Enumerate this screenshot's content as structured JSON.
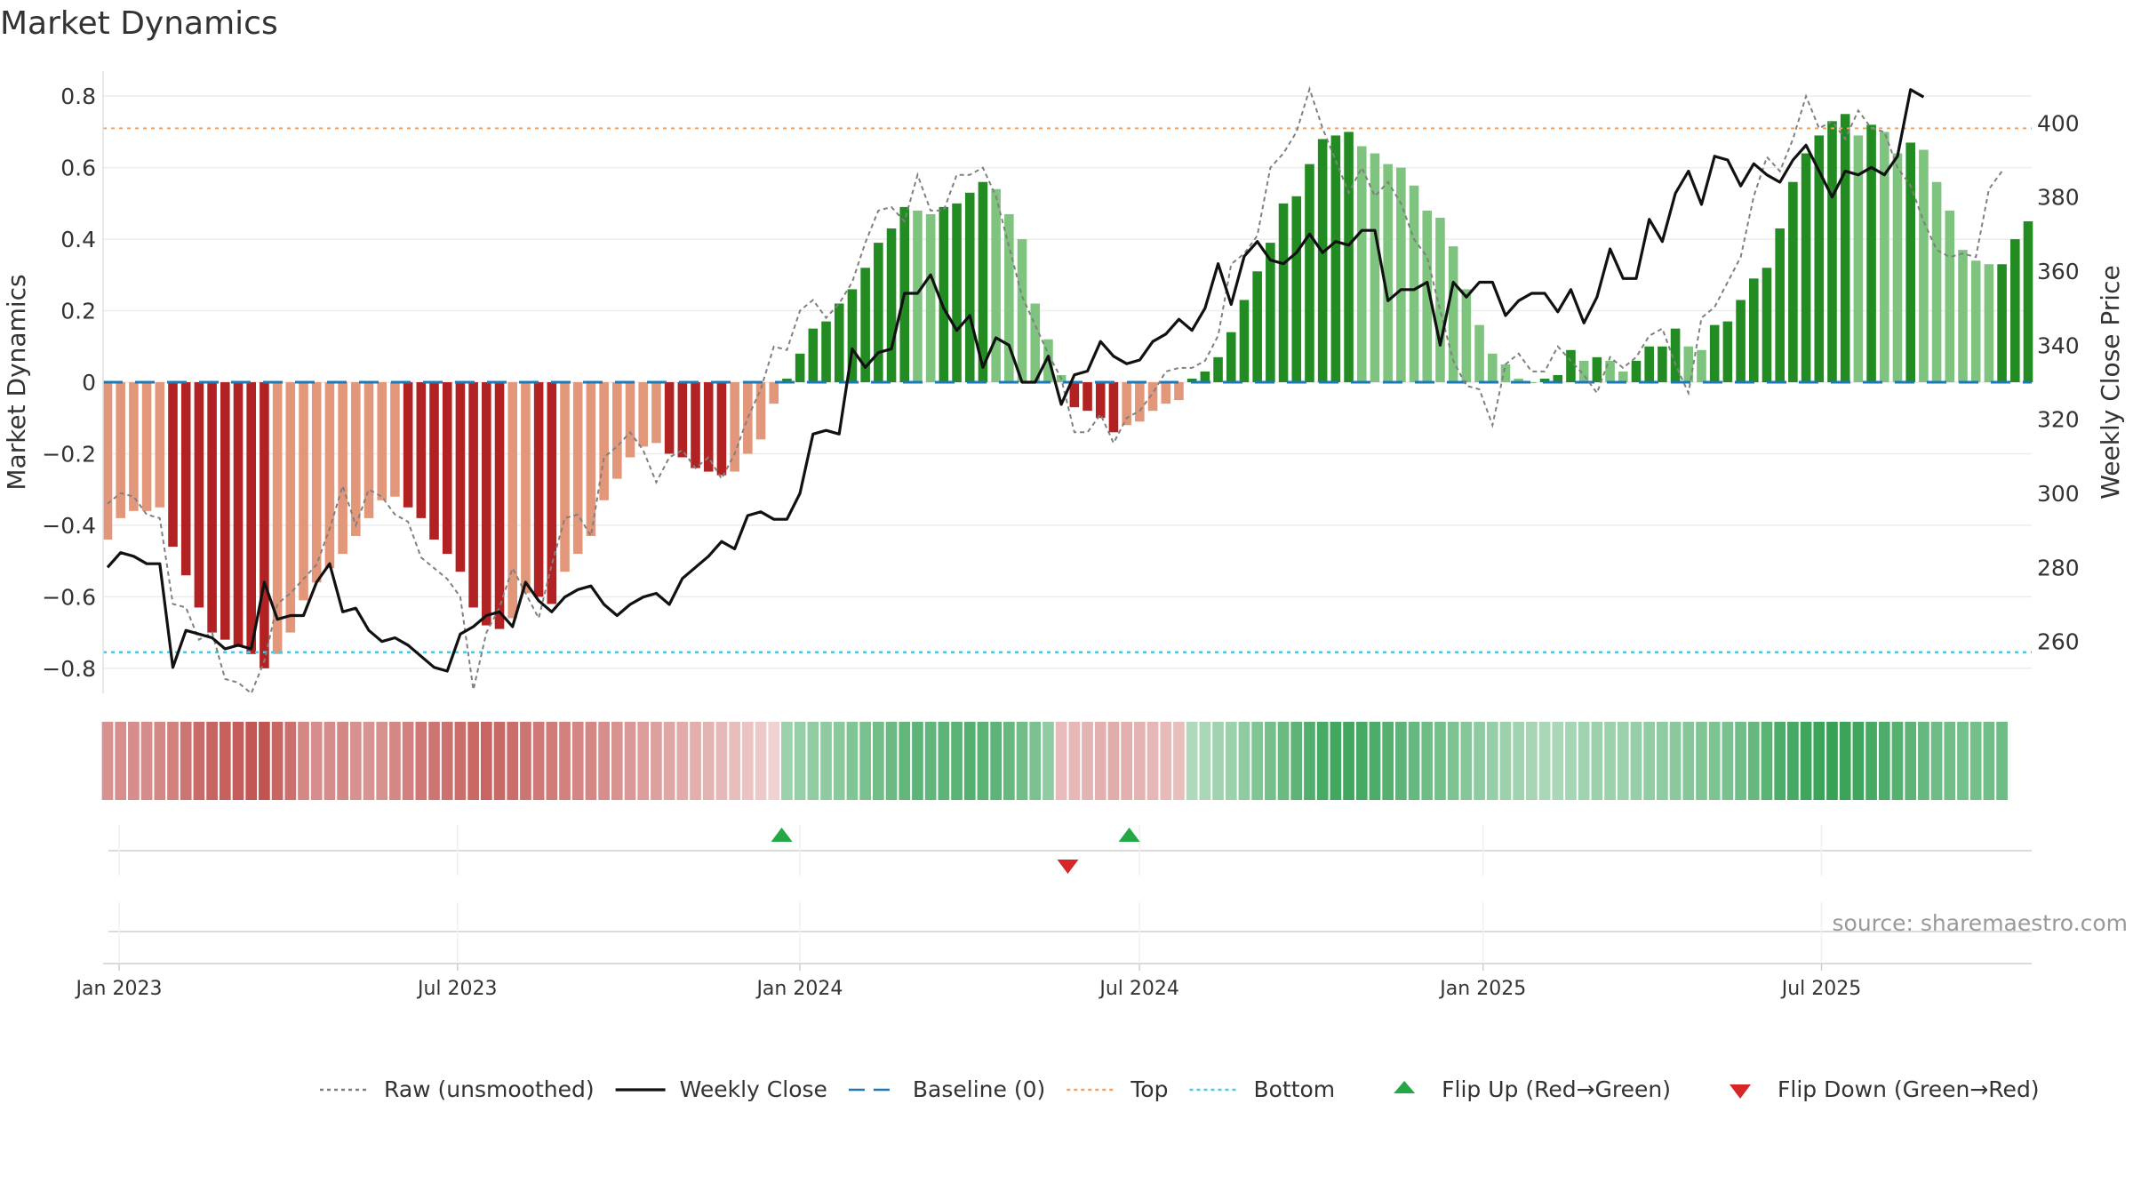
{
  "title": "Market Dynamics",
  "source": "source: sharemaestro.com",
  "chart_data": {
    "type": "bar",
    "ylabel": "Market Dynamics",
    "y2label": "Weekly Close Price",
    "ylim": [
      -0.87,
      0.87
    ],
    "y2lim": [
      246,
      414
    ],
    "yticks": [
      -0.8,
      -0.6,
      -0.4,
      -0.2,
      0,
      0.2,
      0.4,
      0.6,
      0.8
    ],
    "yticklabels": [
      "−0.8",
      "−0.6",
      "−0.4",
      "−0.2",
      "0",
      "0.2",
      "0.4",
      "0.6",
      "0.8"
    ],
    "y2ticks": [
      260,
      280,
      300,
      320,
      340,
      360,
      380,
      400
    ],
    "y2ticklabels": [
      "260",
      "280",
      "300",
      "320",
      "340",
      "360",
      "380",
      "400"
    ],
    "xticks": [
      {
        "label": "Jan 2023",
        "week": 0
      },
      {
        "label": "Jul 2023",
        "week": 25.9
      },
      {
        "label": "Jan 2024",
        "week": 52.1
      },
      {
        "label": "Jul 2024",
        "week": 78.1
      },
      {
        "label": "Jan 2025",
        "week": 104.4
      },
      {
        "label": "Jul 2025",
        "week": 130.3
      }
    ],
    "grid": true,
    "legend_position": "bottom",
    "top_line": 0.71,
    "bottom_line": -0.755,
    "baseline": 0,
    "colors": {
      "bar_bear_strong": "#b22222",
      "bar_bear_weak": "#e3977a",
      "bar_bull_strong": "#228b22",
      "bar_bull_weak": "#7ec47e",
      "weekly_close": "#111111",
      "raw": "#808080",
      "baseline": "#1f77b4",
      "top": "#f4a261",
      "bottom": "#48cae4",
      "flip_up": "#22a845",
      "flip_down": "#d62728",
      "heat_red": "#c0504d",
      "heat_green": "#2e9e4f"
    },
    "series": [
      {
        "name": "Market Dynamics",
        "values": [
          -0.44,
          -0.38,
          -0.36,
          -0.36,
          -0.35,
          -0.46,
          -0.54,
          -0.63,
          -0.7,
          -0.72,
          -0.74,
          -0.76,
          -0.8,
          -0.76,
          -0.7,
          -0.61,
          -0.56,
          -0.52,
          -0.48,
          -0.43,
          -0.38,
          -0.33,
          -0.32,
          -0.35,
          -0.38,
          -0.44,
          -0.48,
          -0.53,
          -0.63,
          -0.68,
          -0.69,
          -0.66,
          -0.59,
          -0.6,
          -0.62,
          -0.53,
          -0.48,
          -0.43,
          -0.33,
          -0.27,
          -0.21,
          -0.18,
          -0.17,
          -0.2,
          -0.21,
          -0.24,
          -0.25,
          -0.26,
          -0.25,
          -0.2,
          -0.16,
          -0.06,
          0.01,
          0.08,
          0.15,
          0.17,
          0.22,
          0.26,
          0.32,
          0.39,
          0.43,
          0.49,
          0.48,
          0.47,
          0.49,
          0.5,
          0.53,
          0.56,
          0.54,
          0.47,
          0.4,
          0.22,
          0.12,
          0.02,
          -0.07,
          -0.08,
          -0.1,
          -0.14,
          -0.12,
          -0.11,
          -0.08,
          -0.06,
          -0.05,
          0.01,
          0.03,
          0.07,
          0.14,
          0.23,
          0.31,
          0.39,
          0.5,
          0.52,
          0.61,
          0.68,
          0.69,
          0.7,
          0.66,
          0.64,
          0.61,
          0.6,
          0.55,
          0.48,
          0.46,
          0.38,
          0.26,
          0.16,
          0.08,
          0.05,
          0.01,
          0.0,
          0.01,
          0.02,
          0.09,
          0.06,
          0.07,
          0.06,
          0.03,
          0.06,
          0.1,
          0.1,
          0.15,
          0.1,
          0.09,
          0.16,
          0.17,
          0.23,
          0.29,
          0.32,
          0.43,
          0.56,
          0.64,
          0.69,
          0.73,
          0.75,
          0.69,
          0.72,
          0.7,
          0.64,
          0.67,
          0.65,
          0.56,
          0.48,
          0.37,
          0.34,
          0.33,
          0.33,
          0.4,
          0.45
        ]
      },
      {
        "name": "Raw (unsmoothed)",
        "values": [
          -0.34,
          -0.31,
          -0.32,
          -0.37,
          -0.38,
          -0.62,
          -0.63,
          -0.72,
          -0.7,
          -0.83,
          -0.84,
          -0.87,
          -0.78,
          -0.62,
          -0.59,
          -0.55,
          -0.51,
          -0.41,
          -0.29,
          -0.4,
          -0.3,
          -0.32,
          -0.37,
          -0.39,
          -0.49,
          -0.52,
          -0.55,
          -0.6,
          -0.86,
          -0.7,
          -0.63,
          -0.52,
          -0.59,
          -0.66,
          -0.51,
          -0.38,
          -0.37,
          -0.43,
          -0.21,
          -0.18,
          -0.14,
          -0.19,
          -0.28,
          -0.21,
          -0.19,
          -0.24,
          -0.21,
          -0.27,
          -0.2,
          -0.1,
          -0.02,
          0.1,
          0.09,
          0.2,
          0.23,
          0.18,
          0.22,
          0.28,
          0.39,
          0.48,
          0.49,
          0.45,
          0.58,
          0.48,
          0.48,
          0.58,
          0.58,
          0.6,
          0.52,
          0.38,
          0.24,
          0.16,
          0.08,
          0.01,
          -0.14,
          -0.14,
          -0.09,
          -0.17,
          -0.1,
          -0.08,
          -0.03,
          0.03,
          0.04,
          0.04,
          0.06,
          0.13,
          0.33,
          0.36,
          0.41,
          0.6,
          0.64,
          0.7,
          0.82,
          0.71,
          0.62,
          0.53,
          0.6,
          0.52,
          0.56,
          0.5,
          0.4,
          0.35,
          0.2,
          0.06,
          -0.01,
          -0.02,
          -0.12,
          0.05,
          0.08,
          0.03,
          0.03,
          0.1,
          0.06,
          0.02,
          -0.03,
          0.07,
          0.04,
          0.07,
          0.13,
          0.15,
          0.05,
          -0.03,
          0.18,
          0.21,
          0.28,
          0.35,
          0.52,
          0.63,
          0.59,
          0.68,
          0.8,
          0.71,
          0.73,
          0.68,
          0.76,
          0.71,
          0.7,
          0.6,
          0.55,
          0.45,
          0.37,
          0.35,
          0.36,
          0.35,
          0.54,
          0.59
        ]
      },
      {
        "name": "Weekly Close",
        "values": [
          280,
          284,
          283,
          281,
          281,
          253,
          263,
          262,
          261,
          258,
          259,
          258,
          276,
          266,
          267,
          267,
          276,
          281,
          268,
          269,
          263,
          260,
          261,
          259,
          256,
          253,
          252,
          262,
          264,
          267,
          268,
          264,
          276,
          271,
          268,
          272,
          274,
          275,
          270,
          267,
          270,
          272,
          273,
          270,
          277,
          280,
          283,
          287,
          285,
          294,
          295,
          293,
          293,
          300,
          316,
          317,
          316,
          339,
          334,
          338,
          339,
          354,
          354,
          359,
          350,
          344,
          348,
          334,
          342,
          340,
          330,
          330,
          337,
          324,
          332,
          333,
          341,
          337,
          335,
          336,
          341,
          343,
          347,
          344,
          350,
          362,
          351,
          364,
          368,
          363,
          362,
          365,
          370,
          365,
          368,
          367,
          371,
          371,
          352,
          355,
          355,
          357,
          340,
          357,
          353,
          357,
          357,
          348,
          352,
          354,
          354,
          349,
          355,
          346,
          353,
          366,
          358,
          358,
          374,
          368,
          381,
          387,
          378,
          391,
          390,
          383,
          389,
          386,
          384,
          390,
          394,
          387,
          380,
          387,
          386,
          388,
          386,
          391,
          409,
          407
        ]
      }
    ],
    "heat_strip": [
      -0.45,
      -0.46,
      -0.47,
      -0.48,
      -0.5,
      -0.55,
      -0.62,
      -0.68,
      -0.72,
      -0.74,
      -0.76,
      -0.8,
      -0.82,
      -0.72,
      -0.65,
      -0.5,
      -0.47,
      -0.48,
      -0.5,
      -0.45,
      -0.43,
      -0.45,
      -0.5,
      -0.55,
      -0.6,
      -0.62,
      -0.64,
      -0.66,
      -0.7,
      -0.72,
      -0.7,
      -0.66,
      -0.62,
      -0.6,
      -0.58,
      -0.55,
      -0.52,
      -0.5,
      -0.47,
      -0.44,
      -0.4,
      -0.38,
      -0.36,
      -0.33,
      -0.3,
      -0.27,
      -0.24,
      -0.21,
      -0.18,
      -0.15,
      -0.12,
      -0.06,
      0.3,
      0.32,
      0.34,
      0.36,
      0.38,
      0.42,
      0.46,
      0.5,
      0.54,
      0.58,
      0.6,
      0.58,
      0.6,
      0.62,
      0.64,
      0.62,
      0.6,
      0.56,
      0.5,
      0.45,
      0.35,
      -0.2,
      -0.22,
      -0.24,
      -0.26,
      -0.28,
      -0.26,
      -0.24,
      -0.22,
      -0.2,
      -0.18,
      0.2,
      0.22,
      0.26,
      0.3,
      0.36,
      0.42,
      0.48,
      0.54,
      0.6,
      0.66,
      0.72,
      0.74,
      0.75,
      0.72,
      0.68,
      0.64,
      0.6,
      0.56,
      0.52,
      0.48,
      0.44,
      0.4,
      0.36,
      0.32,
      0.28,
      0.26,
      0.24,
      0.22,
      0.22,
      0.24,
      0.26,
      0.28,
      0.3,
      0.3,
      0.32,
      0.34,
      0.36,
      0.38,
      0.4,
      0.42,
      0.44,
      0.46,
      0.5,
      0.56,
      0.62,
      0.68,
      0.72,
      0.76,
      0.78,
      0.8,
      0.78,
      0.76,
      0.72,
      0.68,
      0.64,
      0.6,
      0.56,
      0.52,
      0.5,
      0.48,
      0.48,
      0.5,
      0.52
    ],
    "flips": [
      {
        "type": "up",
        "week": 51.6
      },
      {
        "type": "down",
        "week": 73.5
      },
      {
        "type": "up",
        "week": 78.2
      }
    ],
    "legend": [
      {
        "label": "Raw (unsmoothed)",
        "kind": "dotted",
        "color": "#808080"
      },
      {
        "label": "Weekly Close",
        "kind": "solid",
        "color": "#111111"
      },
      {
        "label": "Baseline (0)",
        "kind": "dashed",
        "color": "#1f77b4"
      },
      {
        "label": "Top",
        "kind": "dotted",
        "color": "#f4a261"
      },
      {
        "label": "Bottom",
        "kind": "dotted",
        "color": "#48cae4"
      },
      {
        "label": "Flip Up (Red→Green)",
        "kind": "tri-up",
        "color": "#22a845"
      },
      {
        "label": "Flip Down (Green→Red)",
        "kind": "tri-down",
        "color": "#d62728"
      }
    ]
  }
}
